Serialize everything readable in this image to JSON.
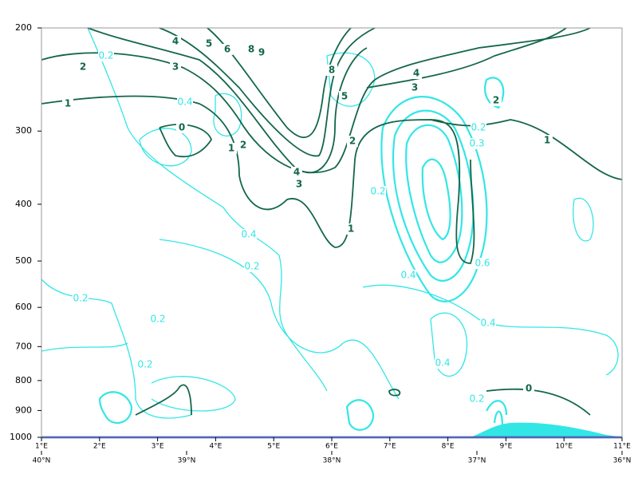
{
  "chart_data": {
    "type": "contour",
    "ylim": [
      200,
      1000
    ],
    "log_y": true,
    "yticks": [
      200,
      300,
      400,
      500,
      600,
      700,
      800,
      900,
      1000
    ],
    "xlim": [
      1,
      11
    ],
    "xticks": [
      {
        "value": 1,
        "label": "1°E"
      },
      {
        "value": 2,
        "label": "2°E"
      },
      {
        "value": 3,
        "label": "3°E"
      },
      {
        "value": 4,
        "label": "4°E"
      },
      {
        "value": 5,
        "label": "5°E"
      },
      {
        "value": 6,
        "label": "6°E"
      },
      {
        "value": 7,
        "label": "7°E"
      },
      {
        "value": 8,
        "label": "8°E"
      },
      {
        "value": 9,
        "label": "9°E"
      },
      {
        "value": 10,
        "label": "10°E"
      },
      {
        "value": 11,
        "label": "11°E"
      }
    ],
    "x2lim": [
      40,
      36
    ],
    "x2ticks": [
      {
        "value": 40,
        "label": "40°N"
      },
      {
        "value": 39,
        "label": "39°N"
      },
      {
        "value": 38,
        "label": "38°N"
      },
      {
        "value": 37,
        "label": "37°N"
      },
      {
        "value": 36,
        "label": "36°N"
      }
    ],
    "green_labels": [
      "2",
      "3",
      "4",
      "5",
      "6",
      "8",
      "9",
      "1",
      "0",
      "1",
      "2",
      "4",
      "3",
      "8",
      "5",
      "2",
      "1",
      "4",
      "3",
      "2",
      "1",
      "0"
    ],
    "cyan_labels": [
      "0.2",
      "0.4",
      "0.4",
      "0.2",
      "0.2",
      "0.2",
      "0.2",
      "0.2",
      "0.2",
      "0.3",
      "0.6",
      "0.4",
      "0.4",
      "0.4",
      "0.2"
    ],
    "green_color": "#13674a",
    "cyan_color": "#33e6e6"
  }
}
